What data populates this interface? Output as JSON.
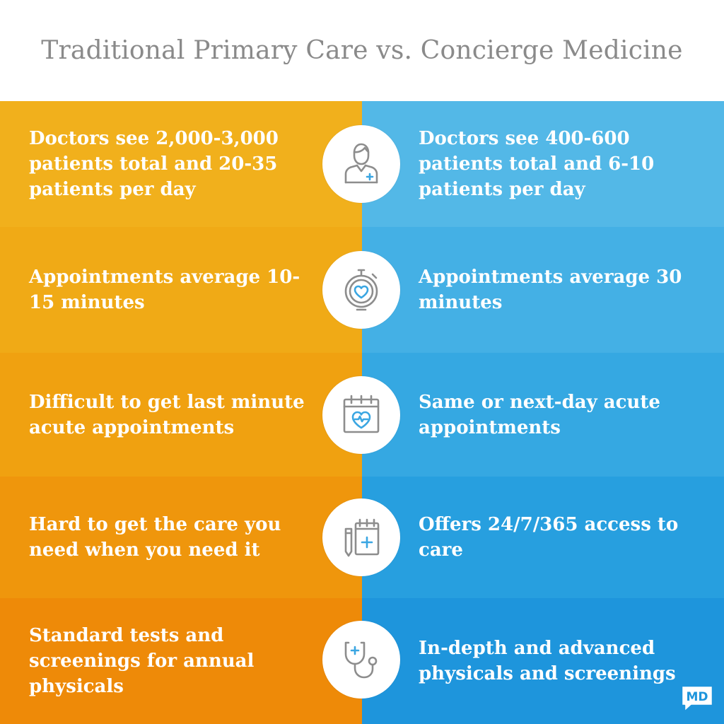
{
  "title": "Traditional Primary Care vs. Concierge Medicine",
  "colors": {
    "title_gray": "#8a8a8a",
    "left_orange_top": "#f2b21c",
    "left_orange_bottom": "#ef8a0a",
    "right_blue_top": "#56bbe8",
    "right_blue_bottom": "#1e95dc",
    "icon_gray": "#8d8d8d",
    "icon_blue": "#3aa6e2"
  },
  "rows": [
    {
      "traditional": "Doctors see 2,000-3,000 patients total and 20-35 patients per day",
      "concierge": "Doctors see 400-600 patients total and 6-10 patients per day",
      "icon": "doctor-icon"
    },
    {
      "traditional": "Appointments average 10-15 minutes",
      "concierge": "Appointments average 30 minutes",
      "icon": "stopwatch-heart-icon"
    },
    {
      "traditional": "Difficult to get last minute acute appointments",
      "concierge": "Same or next-day acute appointments",
      "icon": "calendar-heart-icon"
    },
    {
      "traditional": "Hard to get the care you need when you need it",
      "concierge": "Offers 24/7/365 access to care",
      "icon": "medical-calendar-icon"
    },
    {
      "traditional": "Standard tests and screenings for annual physicals",
      "concierge": "In-depth and advanced physicals and screenings",
      "icon": "stethoscope-icon"
    }
  ],
  "logo": {
    "text": "MD",
    "icon": "md-chat-logo-icon"
  }
}
